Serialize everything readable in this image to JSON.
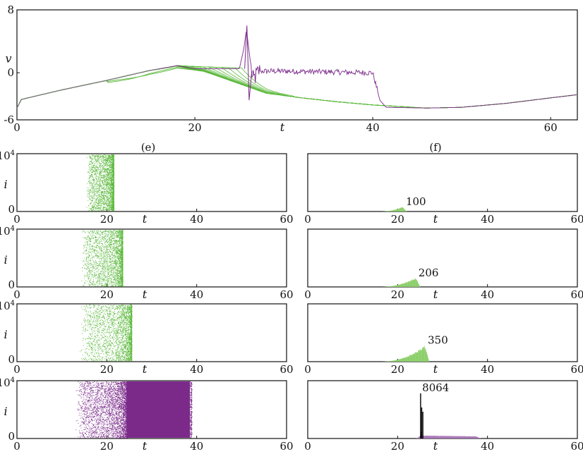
{
  "colors": {
    "green": "#5ab83a",
    "light_green": "#8ccf6a",
    "purple": "#7b2a8a",
    "light_purple": "#a877b8",
    "gray": "#777777"
  },
  "chart_data": [
    {
      "id": "voltage-traces",
      "type": "line",
      "title": "",
      "xlabel": "t",
      "ylabel": "v",
      "xlim": [
        0,
        63
      ],
      "ylim": [
        -6,
        8
      ],
      "xticks": [
        "0",
        "20",
        "40",
        "60"
      ],
      "yticks": [
        "-6",
        "0",
        "8"
      ],
      "series": [
        {
          "color": "purple",
          "x": [
            0,
            0.5,
            5,
            10,
            15,
            18,
            20,
            25,
            25.5,
            25.8,
            26.5,
            27.2,
            28,
            30,
            35,
            40,
            40.8,
            41.5,
            46,
            50,
            55,
            60,
            63
          ],
          "y": [
            -4.5,
            -3.4,
            -2.2,
            -1.0,
            0.3,
            0.9,
            0.5,
            0.5,
            3.0,
            5.5,
            -1.0,
            0.2,
            0.2,
            0.2,
            0.1,
            0,
            -3.5,
            -4.4,
            -4.5,
            -4.4,
            -3.9,
            -3.2,
            -2.8
          ]
        },
        {
          "color": "green",
          "x": [
            0,
            0.5,
            5,
            10,
            15,
            18,
            21,
            25,
            28,
            32,
            36,
            40,
            46,
            50,
            55,
            60,
            63
          ],
          "y": [
            -4.5,
            -3.4,
            -2.2,
            -1.0,
            0.3,
            0.8,
            0.2,
            -1.4,
            -2.6,
            -3.2,
            -3.7,
            -4.1,
            -4.5,
            -4.4,
            -3.9,
            -3.2,
            -2.8
          ]
        }
      ]
    },
    {
      "id": "raster-1",
      "type": "scatter",
      "ylabel": "i",
      "xlabel": "t",
      "xlim": [
        0,
        60
      ],
      "ylim": [
        0,
        10000
      ],
      "xticks": [
        "0",
        "20",
        "40",
        "60"
      ],
      "yticks": [
        "0",
        "10"
      ],
      "ytick_top_exp": "4",
      "series": [
        {
          "color": "green",
          "t_start": 16,
          "t_dense": 19,
          "t_end": 21.5
        }
      ]
    },
    {
      "id": "raster-2",
      "type": "scatter",
      "ylabel": "i",
      "xlabel": "t",
      "xlim": [
        0,
        60
      ],
      "ylim": [
        0,
        10000
      ],
      "xticks": [
        "0",
        "20",
        "40",
        "60"
      ],
      "yticks": [
        "0",
        "10"
      ],
      "ytick_top_exp": "4",
      "series": [
        {
          "color": "green",
          "t_start": 15,
          "t_dense": 19,
          "t_end": 23.5
        }
      ]
    },
    {
      "id": "raster-3",
      "type": "scatter",
      "ylabel": "i",
      "xlabel": "t",
      "xlim": [
        0,
        60
      ],
      "ylim": [
        0,
        10000
      ],
      "xticks": [
        "0",
        "20",
        "40",
        "60"
      ],
      "yticks": [
        "0",
        "10"
      ],
      "ytick_top_exp": "4",
      "series": [
        {
          "color": "green",
          "t_start": 15,
          "t_dense": 19,
          "t_end": 25.5
        }
      ]
    },
    {
      "id": "raster-4",
      "type": "scatter",
      "ylabel": "i",
      "xlabel": "t",
      "xlim": [
        0,
        60
      ],
      "ylim": [
        0,
        10000
      ],
      "xticks": [
        "0",
        "20",
        "40",
        "60"
      ],
      "yticks": [
        "0",
        "10"
      ],
      "ytick_top_exp": "4",
      "series": [
        {
          "color": "purple",
          "t_start": 14,
          "t_dense": 20,
          "t_end": 24.5,
          "block_start": 24.5,
          "block_end": 38.5
        }
      ]
    },
    {
      "id": "hist-1",
      "type": "bar",
      "xlabel": "t",
      "xlim": [
        0,
        60
      ],
      "ylim": [
        0,
        1000
      ],
      "xticks": [
        "0",
        "20",
        "40",
        "60"
      ],
      "peak_label": "100",
      "series": [
        {
          "color": "light_green",
          "t_start": 16,
          "t_peak": 21,
          "t_end": 22,
          "peak": 100
        }
      ]
    },
    {
      "id": "hist-2",
      "type": "bar",
      "xlabel": "t",
      "xlim": [
        0,
        60
      ],
      "ylim": [
        0,
        1000
      ],
      "xticks": [
        "0",
        "20",
        "40",
        "60"
      ],
      "peak_label": "206",
      "series": [
        {
          "color": "light_green",
          "t_start": 16,
          "t_peak": 24,
          "t_end": 25,
          "peak": 206
        }
      ]
    },
    {
      "id": "hist-3",
      "type": "bar",
      "xlabel": "t",
      "xlim": [
        0,
        60
      ],
      "ylim": [
        0,
        1000
      ],
      "xticks": [
        "0",
        "20",
        "40",
        "60"
      ],
      "peak_label": "350",
      "series": [
        {
          "color": "light_green",
          "t_start": 16,
          "t_peak": 26,
          "t_end": 27,
          "peak": 350
        }
      ]
    },
    {
      "id": "hist-4",
      "type": "bar",
      "xlabel": "t",
      "xlim": [
        0,
        60
      ],
      "ylim": [
        0,
        1000
      ],
      "xticks": [
        "0",
        "20",
        "40",
        "60"
      ],
      "peak_label": "8064",
      "series": [
        {
          "color": "light_purple",
          "t_start": 24,
          "t_peak": 25,
          "t_end": 38.5,
          "peak": 8064,
          "plateau_start": 250,
          "plateau_end": 180
        }
      ]
    }
  ],
  "panel_labels": {
    "e": "(e)",
    "f": "(f)"
  }
}
